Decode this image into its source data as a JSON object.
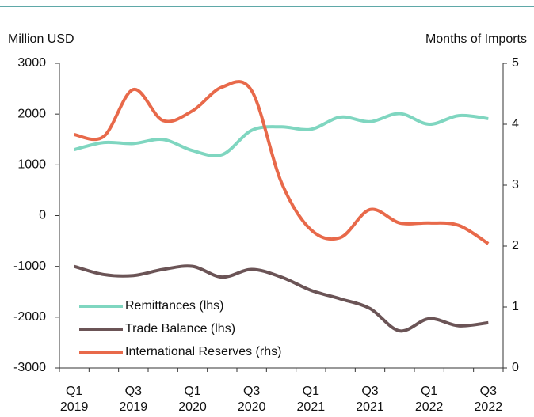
{
  "chart_data": {
    "type": "line",
    "ylabel": "Million USD",
    "y2label": "Months of Imports",
    "categories": [
      "Q1 2019",
      null,
      "Q3 2019",
      null,
      "Q1 2020",
      null,
      "Q3 2020",
      null,
      "Q1 2021",
      null,
      "Q3 2021",
      null,
      "Q1 2022",
      null,
      "Q3 2022"
    ],
    "series": [
      {
        "name": "Remittances (lhs)",
        "color": "#7fd6c0",
        "values": [
          1300,
          1440,
          1420,
          1500,
          1280,
          1200,
          1680,
          1750,
          1700,
          1940,
          1850,
          2010,
          1800,
          1970,
          1910
        ]
      },
      {
        "name": "Trade Balance (lhs)",
        "color": "#6b5456",
        "values": [
          -1000,
          -1160,
          -1180,
          -1060,
          -1000,
          -1210,
          -1060,
          -1210,
          -1470,
          -1640,
          -1830,
          -2270,
          -2030,
          -2170,
          -2110
        ]
      },
      {
        "name": "International Reserves (rhs)",
        "color": "#e8694a",
        "axis": "y2",
        "values": [
          3.83,
          3.8,
          4.57,
          4.06,
          4.22,
          4.61,
          4.55,
          3.05,
          2.27,
          2.14,
          2.6,
          2.38,
          2.38,
          2.34,
          2.04
        ]
      }
    ],
    "ylim": [
      -3000,
      3000
    ],
    "yticks": [
      -3000,
      -2000,
      -1000,
      0,
      1000,
      2000,
      3000
    ],
    "y2lim": [
      0,
      5
    ],
    "y2ticks": [
      0,
      1,
      2,
      3,
      4,
      5
    ]
  }
}
